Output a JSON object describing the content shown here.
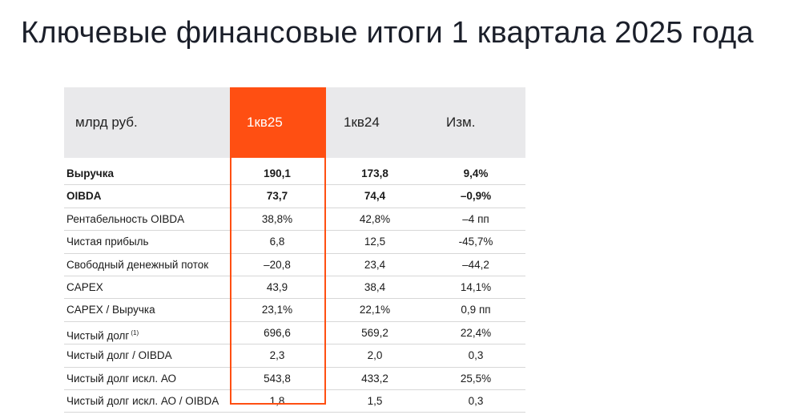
{
  "title": "Ключевые финансовые итоги 1 квартала 2025 года",
  "colors": {
    "accent": "#ff4f12",
    "header_bg": "#e9e9eb",
    "divider": "#d7d7d7"
  },
  "table": {
    "headers": {
      "unit": "млрд руб.",
      "current": "1кв25",
      "previous": "1кв24",
      "change": "Изм."
    },
    "rows": [
      {
        "label": "Выручка",
        "current": "190,1",
        "previous": "173,8",
        "change": "9,4%",
        "bold": true
      },
      {
        "label": "OIBDA",
        "current": "73,7",
        "previous": "74,4",
        "change": "–0,9%",
        "bold": true
      },
      {
        "label": "Рентабельность OIBDA",
        "current": "38,8%",
        "previous": "42,8%",
        "change": "–4 пп"
      },
      {
        "label": "Чистая прибыль",
        "current": "6,8",
        "previous": "12,5",
        "change": "-45,7%"
      },
      {
        "label": "Свободный денежный поток",
        "current": "–20,8",
        "previous": "23,4",
        "change": "–44,2"
      },
      {
        "label": "CAPEX",
        "current": "43,9",
        "previous": "38,4",
        "change": "14,1%"
      },
      {
        "label": "CAPEX / Выручка",
        "current": "23,1%",
        "previous": "22,1%",
        "change": "0,9 пп"
      },
      {
        "label": "Чистый долг",
        "footnote": "(1)",
        "current": "696,6",
        "previous": "569,2",
        "change": "22,4%"
      },
      {
        "label": "Чистый долг / OIBDA",
        "current": "2,3",
        "previous": "2,0",
        "change": "0,3"
      },
      {
        "label": "Чистый долг искл. АО",
        "current": "543,8",
        "previous": "433,2",
        "change": "25,5%"
      },
      {
        "label": "Чистый долг искл. АО / OIBDA",
        "current": "1,8",
        "previous": "1,5",
        "change": "0,3"
      }
    ]
  }
}
